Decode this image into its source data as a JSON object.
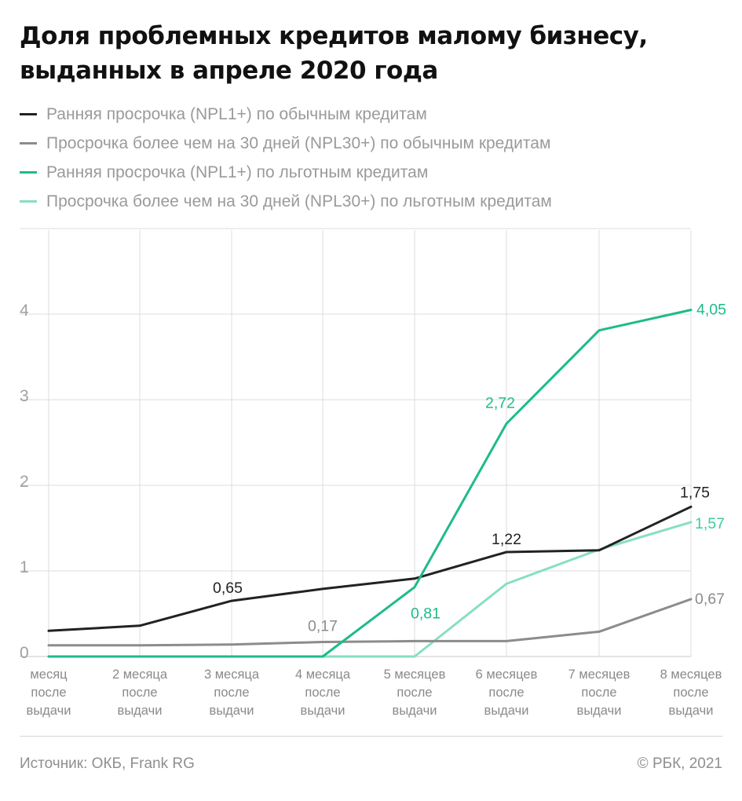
{
  "title": {
    "line1": "Доля проблемных кредитов малому бизнесу,",
    "line2": "выданных в апреле 2020 года"
  },
  "colors": {
    "npl1_regular": "#222222",
    "npl30_regular": "#8c8c8c",
    "npl1_preferential": "#1dbb8b",
    "npl30_preferential": "#87dfc2",
    "grid": "#dcdcdc",
    "tick_text": "#a0a0a0"
  },
  "chart_data": {
    "type": "line",
    "title": "Доля проблемных кредитов малому бизнесу, выданных в апреле 2020 года",
    "xlabel": "",
    "ylabel": "",
    "ylim": [
      0,
      5
    ],
    "yticks": [
      "0",
      "1",
      "2",
      "3",
      "4"
    ],
    "grid": true,
    "legend_position": "top-left",
    "categories": [
      [
        "месяц",
        "после",
        "выдачи"
      ],
      [
        "2 месяца",
        "после",
        "выдачи"
      ],
      [
        "3 месяца",
        "после",
        "выдачи"
      ],
      [
        "4 месяца",
        "после",
        "выдачи"
      ],
      [
        "5 месяцев",
        "после",
        "выдачи"
      ],
      [
        "6 месяцев",
        "после",
        "выдачи"
      ],
      [
        "7 месяцев",
        "после",
        "выдачи"
      ],
      [
        "8 месяцев",
        "после",
        "выдачи"
      ]
    ],
    "series": [
      {
        "name": "Ранняя просрочка (NPL1+) по обычным кредитам",
        "color": "#222222",
        "values": [
          0.3,
          0.36,
          0.65,
          0.79,
          0.91,
          1.22,
          1.24,
          1.75
        ],
        "labels": [
          {
            "index": 2,
            "text": "0,65"
          },
          {
            "index": 5,
            "text": "1,22"
          },
          {
            "index": 7,
            "text": "1,75"
          }
        ]
      },
      {
        "name": "Просрочка более чем на 30 дней (NPL30+) по обычным кредитам",
        "color": "#8c8c8c",
        "values": [
          0.13,
          0.13,
          0.14,
          0.17,
          0.18,
          0.18,
          0.29,
          0.67
        ],
        "labels": [
          {
            "index": 3,
            "text": "0,17"
          },
          {
            "index": 7,
            "text": "0,67"
          }
        ]
      },
      {
        "name": "Ранняя просрочка (NPL1+) по льготным кредитам",
        "color": "#1dbb8b",
        "values": [
          0.0,
          0.0,
          0.0,
          0.0,
          0.81,
          2.72,
          3.81,
          4.05
        ],
        "labels": [
          {
            "index": 4,
            "text": "0,81"
          },
          {
            "index": 5,
            "text": "2,72"
          },
          {
            "index": 7,
            "text": "4,05"
          }
        ]
      },
      {
        "name": "Просрочка более чем на 30 дней (NPL30+) по льготным кредитам",
        "color": "#87dfc2",
        "values": [
          0.0,
          0.0,
          0.0,
          0.0,
          0.0,
          0.85,
          1.25,
          1.57
        ],
        "labels": [
          {
            "index": 7,
            "text": "1,57"
          }
        ]
      }
    ]
  },
  "footer": {
    "source": "Источник:  ОКБ, Frank RG",
    "credit": "©  РБК, 2021"
  }
}
